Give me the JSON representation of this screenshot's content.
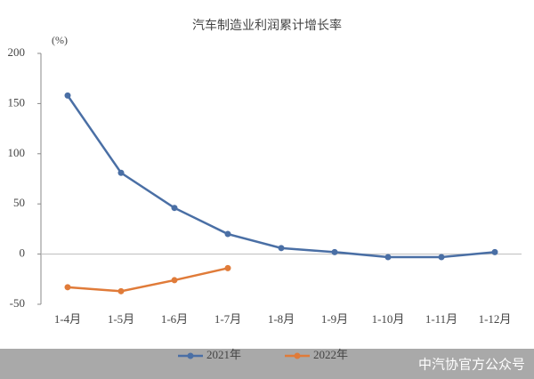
{
  "chart_data": {
    "type": "line",
    "title": "汽车制造业利润累计增长率",
    "y_unit_label": "(%)",
    "categories": [
      "1-4月",
      "1-5月",
      "1-6月",
      "1-7月",
      "1-8月",
      "1-9月",
      "1-10月",
      "1-11月",
      "1-12月"
    ],
    "series": [
      {
        "name": "2021年",
        "color": "#4a6fa5",
        "values": [
          158,
          81,
          46,
          20,
          6,
          2,
          -3,
          -3,
          2
        ]
      },
      {
        "name": "2022年",
        "color": "#e07b39",
        "values": [
          -33,
          -37,
          -26,
          -14,
          null,
          null,
          null,
          null,
          null
        ]
      }
    ],
    "ylim": [
      -50,
      200
    ],
    "yticks": [
      -50,
      0,
      50,
      100,
      150,
      200
    ],
    "grid": false,
    "legend": "bottom"
  },
  "watermark": "中汽协官方公众号"
}
